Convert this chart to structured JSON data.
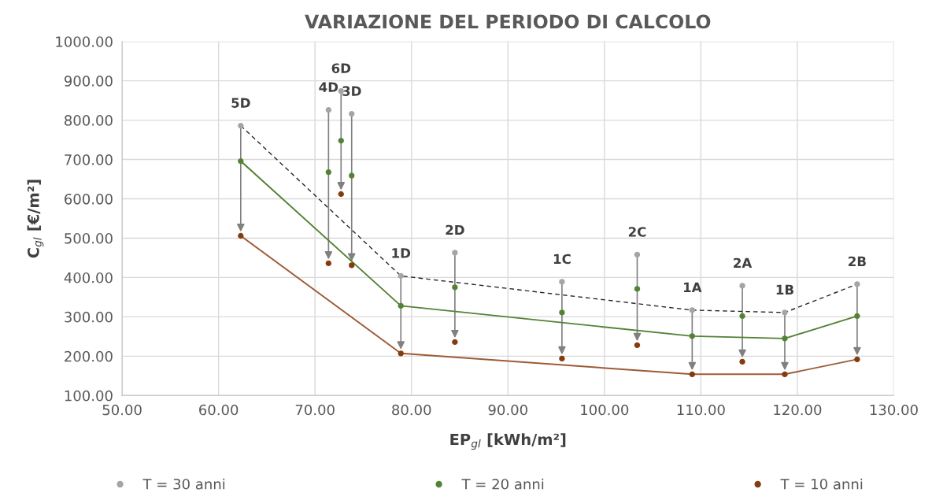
{
  "chart_data": {
    "type": "scatter",
    "title": "VARIAZIONE DEL PERIODO DI CALCOLO",
    "xlabel": "EP$_{gl}$ [kWh/m²]",
    "ylabel": "C$_{gl}$ [€/m²]",
    "x": [
      62.3,
      71.4,
      72.7,
      73.8,
      78.9,
      84.5,
      95.6,
      103.4,
      109.1,
      114.3,
      118.7,
      126.2
    ],
    "series": [
      {
        "name": "T = 30 anni",
        "color": "#a5a5a5",
        "values": [
          786,
          826,
          874,
          816,
          404,
          463,
          389,
          458,
          317,
          379,
          311,
          383
        ]
      },
      {
        "name": "T = 20 anni",
        "color": "#548235",
        "values": [
          696,
          668,
          748,
          659,
          328,
          375,
          311,
          371,
          251,
          302,
          245,
          302
        ]
      },
      {
        "name": "T = 10 anni",
        "color": "#843c0c",
        "values": [
          506,
          436,
          612,
          431,
          207,
          236,
          194,
          228,
          154,
          186,
          154,
          192
        ]
      },
      {
        "type": "line",
        "marker": "none",
        "color": "#262626",
        "line_style": "dashed",
        "x": [
          62.3,
          78.9,
          109.1,
          118.7,
          126.2
        ],
        "values": [
          786,
          404,
          317,
          311,
          383
        ]
      },
      {
        "type": "line",
        "marker": "none",
        "color": "#548235",
        "line_style": "solid",
        "x": [
          62.3,
          78.9,
          109.1,
          118.7,
          126.2
        ],
        "values": [
          696,
          328,
          251,
          245,
          302
        ]
      },
      {
        "type": "line",
        "marker": "none",
        "color": "#9e5a36",
        "line_style": "solid",
        "x": [
          62.3,
          78.9,
          109.1,
          118.7,
          126.2
        ],
        "values": [
          506,
          207,
          154,
          154,
          192
        ]
      }
    ],
    "annotations": [
      {
        "text": "5D",
        "x": 62.3,
        "y": 786
      },
      {
        "text": "4D",
        "x": 71.4,
        "y": 826
      },
      {
        "text": "6D",
        "x": 72.7,
        "y": 874
      },
      {
        "text": "3D",
        "x": 73.8,
        "y": 816
      },
      {
        "text": "1D",
        "x": 78.9,
        "y": 404
      },
      {
        "text": "2D",
        "x": 84.5,
        "y": 463
      },
      {
        "text": "1C",
        "x": 95.6,
        "y": 389
      },
      {
        "text": "2C",
        "x": 103.4,
        "y": 458
      },
      {
        "text": "1A",
        "x": 109.1,
        "y": 317
      },
      {
        "text": "2A",
        "x": 114.3,
        "y": 379
      },
      {
        "text": "1B",
        "x": 118.7,
        "y": 311
      },
      {
        "text": "2B",
        "x": 126.2,
        "y": 383
      }
    ],
    "xlim": [
      50,
      130
    ],
    "xticks": [
      {
        "value": 50,
        "label": "50.00"
      },
      {
        "value": 60,
        "label": "60.00"
      },
      {
        "value": 70,
        "label": "70.00"
      },
      {
        "value": 80,
        "label": "80.00"
      },
      {
        "value": 90,
        "label": "90.00"
      },
      {
        "value": 100,
        "label": "100.00"
      },
      {
        "value": 110,
        "label": "110.00"
      },
      {
        "value": 120,
        "label": "120.00"
      },
      {
        "value": 130,
        "label": "130.00"
      }
    ],
    "ylim": [
      100,
      1000
    ],
    "yticks": [
      {
        "value": 100,
        "label": "100.00"
      },
      {
        "value": 200,
        "label": "200.00"
      },
      {
        "value": 300,
        "label": "300.00"
      },
      {
        "value": 400,
        "label": "400.00"
      },
      {
        "value": 500,
        "label": "500.00"
      },
      {
        "value": 600,
        "label": "600.00"
      },
      {
        "value": 700,
        "label": "700.00"
      },
      {
        "value": 800,
        "label": "800.00"
      },
      {
        "value": 900,
        "label": "900.00"
      },
      {
        "value": 1000,
        "label": "1000.00"
      }
    ],
    "grid": true,
    "legend": "bottom",
    "marker": "circle"
  }
}
